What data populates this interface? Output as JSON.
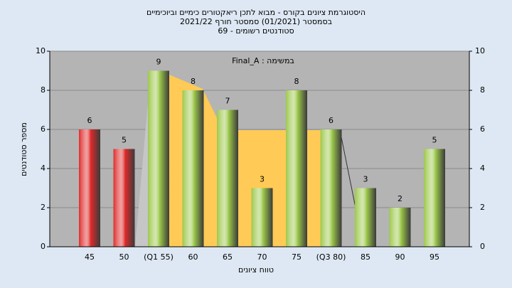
{
  "chart_data": {
    "type": "bar",
    "title_lines": [
      "היסטוגרמת ציונים בקורס - מבוא לתכן ריאקטורים כימיים וביוכימיים",
      "בסמסטר  (01/2021)  סמסטר חורף 2021/22",
      "סטודנטים רשומים - 69"
    ],
    "annotation": "במשימה : Final_A",
    "x_label": "טווח ציונים",
    "y_label": "מספר סטודנטים",
    "categories": [
      "45",
      "50",
      "(Q1 55)",
      "60",
      "65",
      "70",
      "75",
      "(Q3 80)",
      "85",
      "90",
      "95"
    ],
    "values": [
      6,
      5,
      9,
      8,
      7,
      3,
      8,
      6,
      3,
      2,
      5
    ],
    "colors": [
      "#e02a2a",
      "#e02a2a",
      "#9cc84a",
      "#9cc84a",
      "#9cc84a",
      "#9cc84a",
      "#9cc84a",
      "#9cc84a",
      "#9cc84a",
      "#9cc84a",
      "#9cc84a"
    ],
    "ylim": [
      0,
      10
    ],
    "yticks": [
      0,
      2,
      4,
      6,
      8,
      10
    ],
    "y2lim": [
      0,
      10
    ],
    "y2ticks": [
      0,
      2,
      4,
      6,
      8,
      10
    ],
    "grid": true
  }
}
